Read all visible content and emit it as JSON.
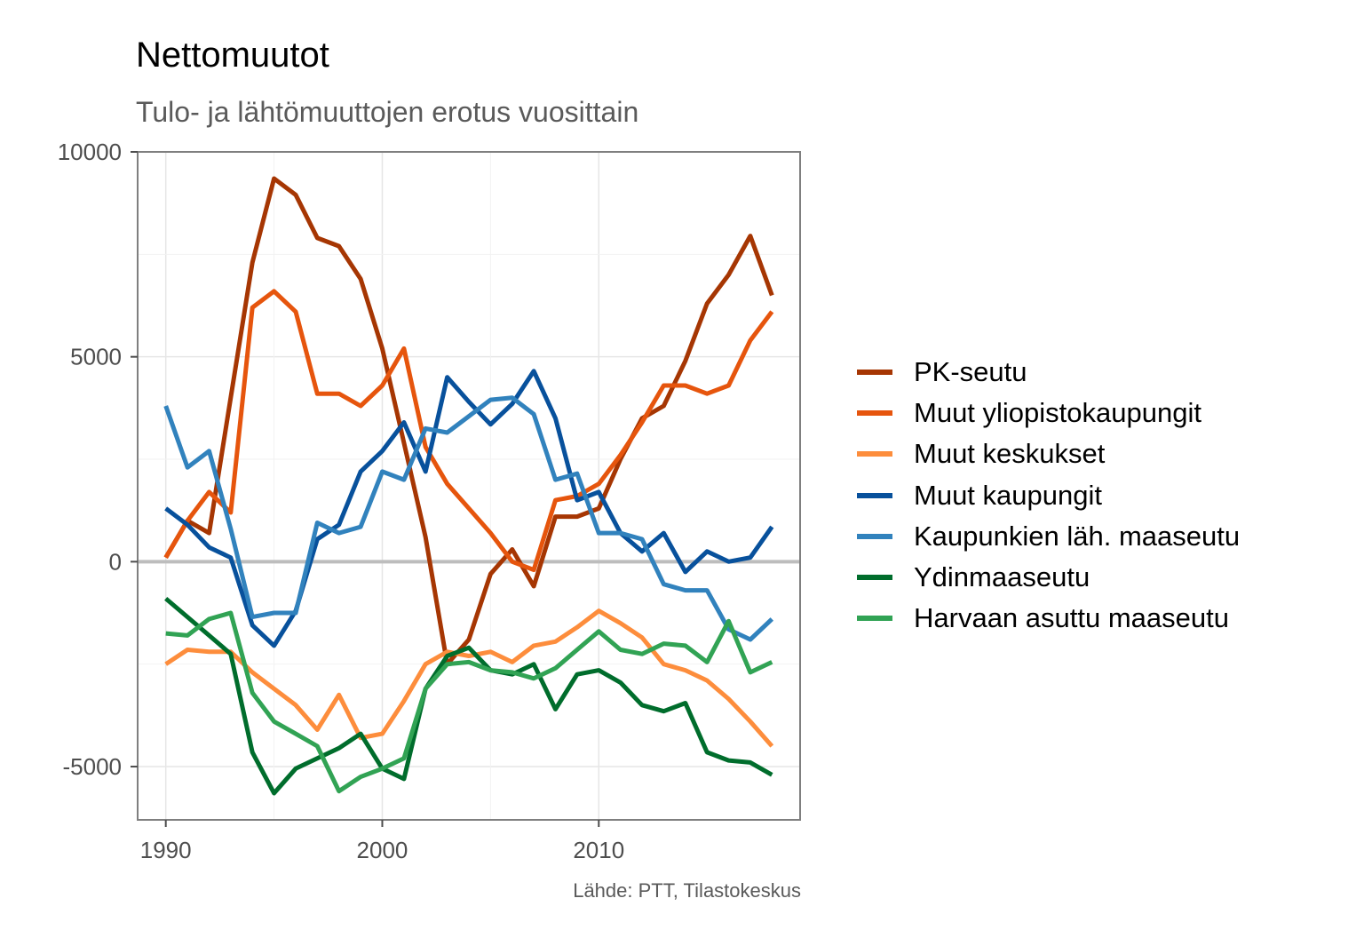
{
  "chart_data": {
    "type": "line",
    "title": "Nettomuutot",
    "subtitle": "Tulo- ja lähtömuuttojen erotus vuosittain",
    "caption": "Lähde: PTT, Tilastokeskus",
    "xlabel": "",
    "ylabel": "",
    "xlim": [
      1988.7,
      2019.3
    ],
    "ylim": [
      -6300,
      10000
    ],
    "x_ticks": [
      1990,
      2000,
      2010
    ],
    "y_ticks": [
      -5000,
      0,
      5000,
      10000
    ],
    "grid": true,
    "zero_line": true,
    "legend_position": "right",
    "x": [
      1990,
      1991,
      1992,
      1993,
      1994,
      1995,
      1996,
      1997,
      1998,
      1999,
      2000,
      2001,
      2002,
      2003,
      2004,
      2005,
      2006,
      2007,
      2008,
      2009,
      2010,
      2011,
      2012,
      2013,
      2014,
      2015,
      2016,
      2017,
      2018
    ],
    "series": [
      {
        "name": "PK-seutu",
        "color": "#a63603",
        "values": [
          100,
          1000,
          700,
          4000,
          7300,
          9350,
          8950,
          7900,
          7700,
          6900,
          5200,
          2900,
          600,
          -2500,
          -1900,
          -300,
          300,
          -600,
          1100,
          1100,
          1300,
          2500,
          3500,
          3800,
          4900,
          6300,
          7000,
          7950,
          6500
        ]
      },
      {
        "name": "Muut yliopistokaupungit",
        "color": "#e6550d",
        "values": [
          100,
          1000,
          1700,
          1200,
          6200,
          6600,
          6100,
          4100,
          4100,
          3800,
          4300,
          5200,
          2800,
          1900,
          1300,
          700,
          0,
          -200,
          1500,
          1600,
          1900,
          2600,
          3400,
          4300,
          4300,
          4100,
          4300,
          5400,
          6100
        ]
      },
      {
        "name": "Muut keskukset",
        "color": "#fd8d3c",
        "values": [
          -2500,
          -2150,
          -2200,
          -2200,
          -2700,
          -3100,
          -3500,
          -4100,
          -3250,
          -4300,
          -4200,
          -3400,
          -2500,
          -2200,
          -2300,
          -2200,
          -2450,
          -2050,
          -1950,
          -1600,
          -1200,
          -1500,
          -1850,
          -2500,
          -2650,
          -2900,
          -3350,
          -3900,
          -4500
        ]
      },
      {
        "name": "Muut kaupungit",
        "color": "#08519c",
        "values": [
          1300,
          900,
          350,
          100,
          -1550,
          -2050,
          -1200,
          550,
          900,
          2200,
          2700,
          3400,
          2200,
          4500,
          3900,
          3350,
          3850,
          4650,
          3500,
          1500,
          1700,
          700,
          250,
          700,
          -250,
          250,
          0,
          100,
          850
        ]
      },
      {
        "name": "Kaupunkien läh. maaseutu",
        "color": "#3182bd",
        "values": [
          3800,
          2300,
          2700,
          800,
          -1350,
          -1250,
          -1250,
          950,
          700,
          850,
          2200,
          2000,
          3250,
          3150,
          3550,
          3950,
          4000,
          3600,
          2000,
          2150,
          700,
          700,
          550,
          -550,
          -700,
          -700,
          -1650,
          -1900,
          -1400
        ]
      },
      {
        "name": "Ydinmaaseutu",
        "color": "#006d2c",
        "values": [
          -900,
          -1350,
          -1800,
          -2250,
          -4650,
          -5650,
          -5050,
          -4800,
          -4550,
          -4200,
          -5050,
          -5300,
          -3100,
          -2300,
          -2100,
          -2650,
          -2750,
          -2500,
          -3600,
          -2750,
          -2650,
          -2950,
          -3500,
          -3650,
          -3450,
          -4650,
          -4850,
          -4900,
          -5200
        ]
      },
      {
        "name": "Harvaan asuttu maaseutu",
        "color": "#31a354",
        "values": [
          -1750,
          -1800,
          -1400,
          -1250,
          -3200,
          -3900,
          -4200,
          -4500,
          -5600,
          -5250,
          -5050,
          -4800,
          -3100,
          -2500,
          -2450,
          -2650,
          -2700,
          -2850,
          -2600,
          -2150,
          -1700,
          -2150,
          -2250,
          -2000,
          -2050,
          -2450,
          -1450,
          -2700,
          -2450
        ]
      }
    ]
  }
}
